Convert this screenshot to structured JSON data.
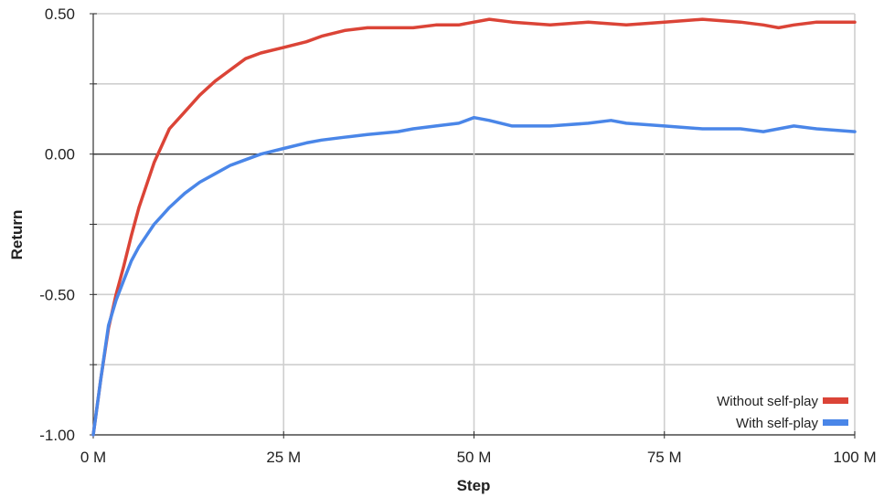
{
  "chart_data": {
    "type": "line",
    "xlabel": "Step",
    "ylabel": "Return",
    "xlim": [
      0,
      100
    ],
    "ylim": [
      -1.0,
      0.5
    ],
    "x_unit": "M",
    "xticks": [
      0,
      25,
      50,
      75,
      100
    ],
    "xtick_labels": [
      "0 M",
      "25 M",
      "50 M",
      "75 M",
      "100 M"
    ],
    "yticks": [
      0.5,
      0.0,
      -0.5,
      -1.0
    ],
    "ytick_labels": [
      "0.50",
      "0.00",
      "-0.50",
      "-1.00"
    ],
    "grid": true,
    "legend_position": "bottom-right",
    "series": [
      {
        "name": "Without self-play",
        "color": "#db4437",
        "x": [
          0,
          1,
          2,
          3,
          4,
          5,
          6,
          7,
          8,
          9,
          10,
          12,
          14,
          16,
          18,
          20,
          22,
          25,
          28,
          30,
          33,
          36,
          40,
          42,
          45,
          48,
          50,
          52,
          55,
          60,
          65,
          70,
          75,
          80,
          85,
          88,
          90,
          92,
          95,
          100
        ],
        "y": [
          -1.0,
          -0.8,
          -0.62,
          -0.5,
          -0.4,
          -0.29,
          -0.19,
          -0.11,
          -0.03,
          0.03,
          0.09,
          0.15,
          0.21,
          0.26,
          0.3,
          0.34,
          0.36,
          0.38,
          0.4,
          0.42,
          0.44,
          0.45,
          0.45,
          0.45,
          0.46,
          0.46,
          0.47,
          0.48,
          0.47,
          0.46,
          0.47,
          0.46,
          0.47,
          0.48,
          0.47,
          0.46,
          0.45,
          0.46,
          0.47,
          0.47
        ]
      },
      {
        "name": "With self-play",
        "color": "#4a86e8",
        "x": [
          0,
          1,
          2,
          3,
          4,
          5,
          6,
          7,
          8,
          9,
          10,
          12,
          14,
          16,
          18,
          20,
          22,
          25,
          28,
          30,
          33,
          36,
          40,
          42,
          45,
          48,
          50,
          52,
          55,
          60,
          65,
          68,
          70,
          75,
          80,
          85,
          88,
          90,
          92,
          95,
          100
        ],
        "y": [
          -1.0,
          -0.8,
          -0.61,
          -0.52,
          -0.45,
          -0.38,
          -0.33,
          -0.29,
          -0.25,
          -0.22,
          -0.19,
          -0.14,
          -0.1,
          -0.07,
          -0.04,
          -0.02,
          0.0,
          0.02,
          0.04,
          0.05,
          0.06,
          0.07,
          0.08,
          0.09,
          0.1,
          0.11,
          0.13,
          0.12,
          0.1,
          0.1,
          0.11,
          0.12,
          0.11,
          0.1,
          0.09,
          0.09,
          0.08,
          0.09,
          0.1,
          0.09,
          0.08
        ]
      }
    ]
  }
}
